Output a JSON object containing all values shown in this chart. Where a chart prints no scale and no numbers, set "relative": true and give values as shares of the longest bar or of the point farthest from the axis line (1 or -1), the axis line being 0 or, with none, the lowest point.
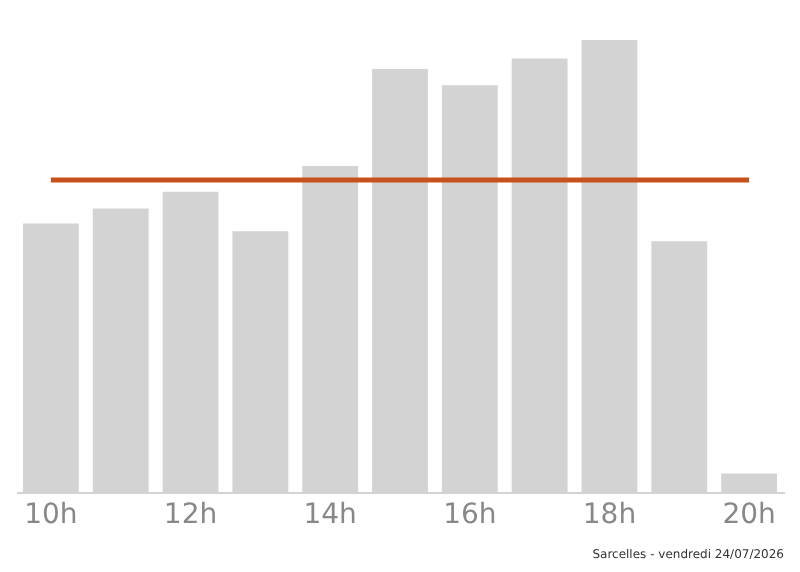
{
  "chart_data": {
    "type": "bar",
    "relative": true,
    "categories": [
      "10h",
      null,
      "12h",
      null,
      "14h",
      null,
      "16h",
      null,
      "18h",
      null,
      "20h"
    ],
    "values": [
      0.594,
      0.627,
      0.664,
      0.577,
      0.721,
      0.936,
      0.9,
      0.959,
      1,
      0.555,
      0.041
    ],
    "color": "#d3d3d3",
    "ref_lines": [
      {
        "axis": "y",
        "value": 0.69,
        "color": "#c8501e"
      }
    ],
    "annotations": [
      "Sarcelles - vendredi 24/07/2026"
    ],
    "grid": false
  }
}
